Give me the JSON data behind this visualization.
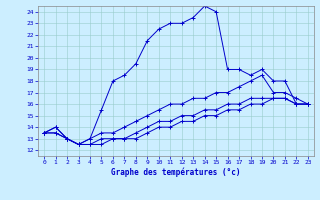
{
  "xlabel": "Graphe des températures (°c)",
  "ylabel": "",
  "xlim": [
    -0.5,
    23.5
  ],
  "ylim": [
    11.5,
    24.5
  ],
  "xticks": [
    0,
    1,
    2,
    3,
    4,
    5,
    6,
    7,
    8,
    9,
    10,
    11,
    12,
    13,
    14,
    15,
    16,
    17,
    18,
    19,
    20,
    21,
    22,
    23
  ],
  "yticks": [
    12,
    13,
    14,
    15,
    16,
    17,
    18,
    19,
    20,
    21,
    22,
    23,
    24
  ],
  "bg_color": "#cceeff",
  "line_color": "#0000cc",
  "grid_color": "#99cccc",
  "line1_x": [
    0,
    1,
    2,
    3,
    4,
    5,
    6,
    7,
    8,
    9,
    10,
    11,
    12,
    13,
    14,
    15,
    16,
    17,
    18,
    19,
    20,
    21,
    22,
    23
  ],
  "line1_y": [
    13.5,
    14.0,
    13.0,
    12.5,
    13.0,
    15.5,
    18.0,
    18.5,
    19.5,
    21.5,
    22.5,
    23.0,
    23.0,
    23.5,
    24.5,
    24.0,
    19.0,
    19.0,
    18.5,
    19.0,
    18.0,
    18.0,
    16.0,
    16.0
  ],
  "line2_x": [
    0,
    1,
    2,
    3,
    4,
    5,
    6,
    7,
    8,
    9,
    10,
    11,
    12,
    13,
    14,
    15,
    16,
    17,
    18,
    19,
    20,
    21,
    22,
    23
  ],
  "line2_y": [
    13.5,
    14.0,
    13.0,
    12.5,
    13.0,
    13.5,
    13.5,
    14.0,
    14.5,
    15.0,
    15.5,
    16.0,
    16.0,
    16.5,
    16.5,
    17.0,
    17.0,
    17.5,
    18.0,
    18.5,
    17.0,
    17.0,
    16.5,
    16.0
  ],
  "line3_x": [
    0,
    1,
    2,
    3,
    4,
    5,
    6,
    7,
    8,
    9,
    10,
    11,
    12,
    13,
    14,
    15,
    16,
    17,
    18,
    19,
    20,
    21,
    22,
    23
  ],
  "line3_y": [
    13.5,
    13.5,
    13.0,
    12.5,
    12.5,
    13.0,
    13.0,
    13.0,
    13.5,
    14.0,
    14.5,
    14.5,
    15.0,
    15.0,
    15.5,
    15.5,
    16.0,
    16.0,
    16.5,
    16.5,
    16.5,
    16.5,
    16.0,
    16.0
  ],
  "line4_x": [
    0,
    1,
    2,
    3,
    4,
    5,
    6,
    7,
    8,
    9,
    10,
    11,
    12,
    13,
    14,
    15,
    16,
    17,
    18,
    19,
    20,
    21,
    22,
    23
  ],
  "line4_y": [
    13.5,
    13.5,
    13.0,
    12.5,
    12.5,
    12.5,
    13.0,
    13.0,
    13.0,
    13.5,
    14.0,
    14.0,
    14.5,
    14.5,
    15.0,
    15.0,
    15.5,
    15.5,
    16.0,
    16.0,
    16.5,
    16.5,
    16.0,
    16.0
  ]
}
